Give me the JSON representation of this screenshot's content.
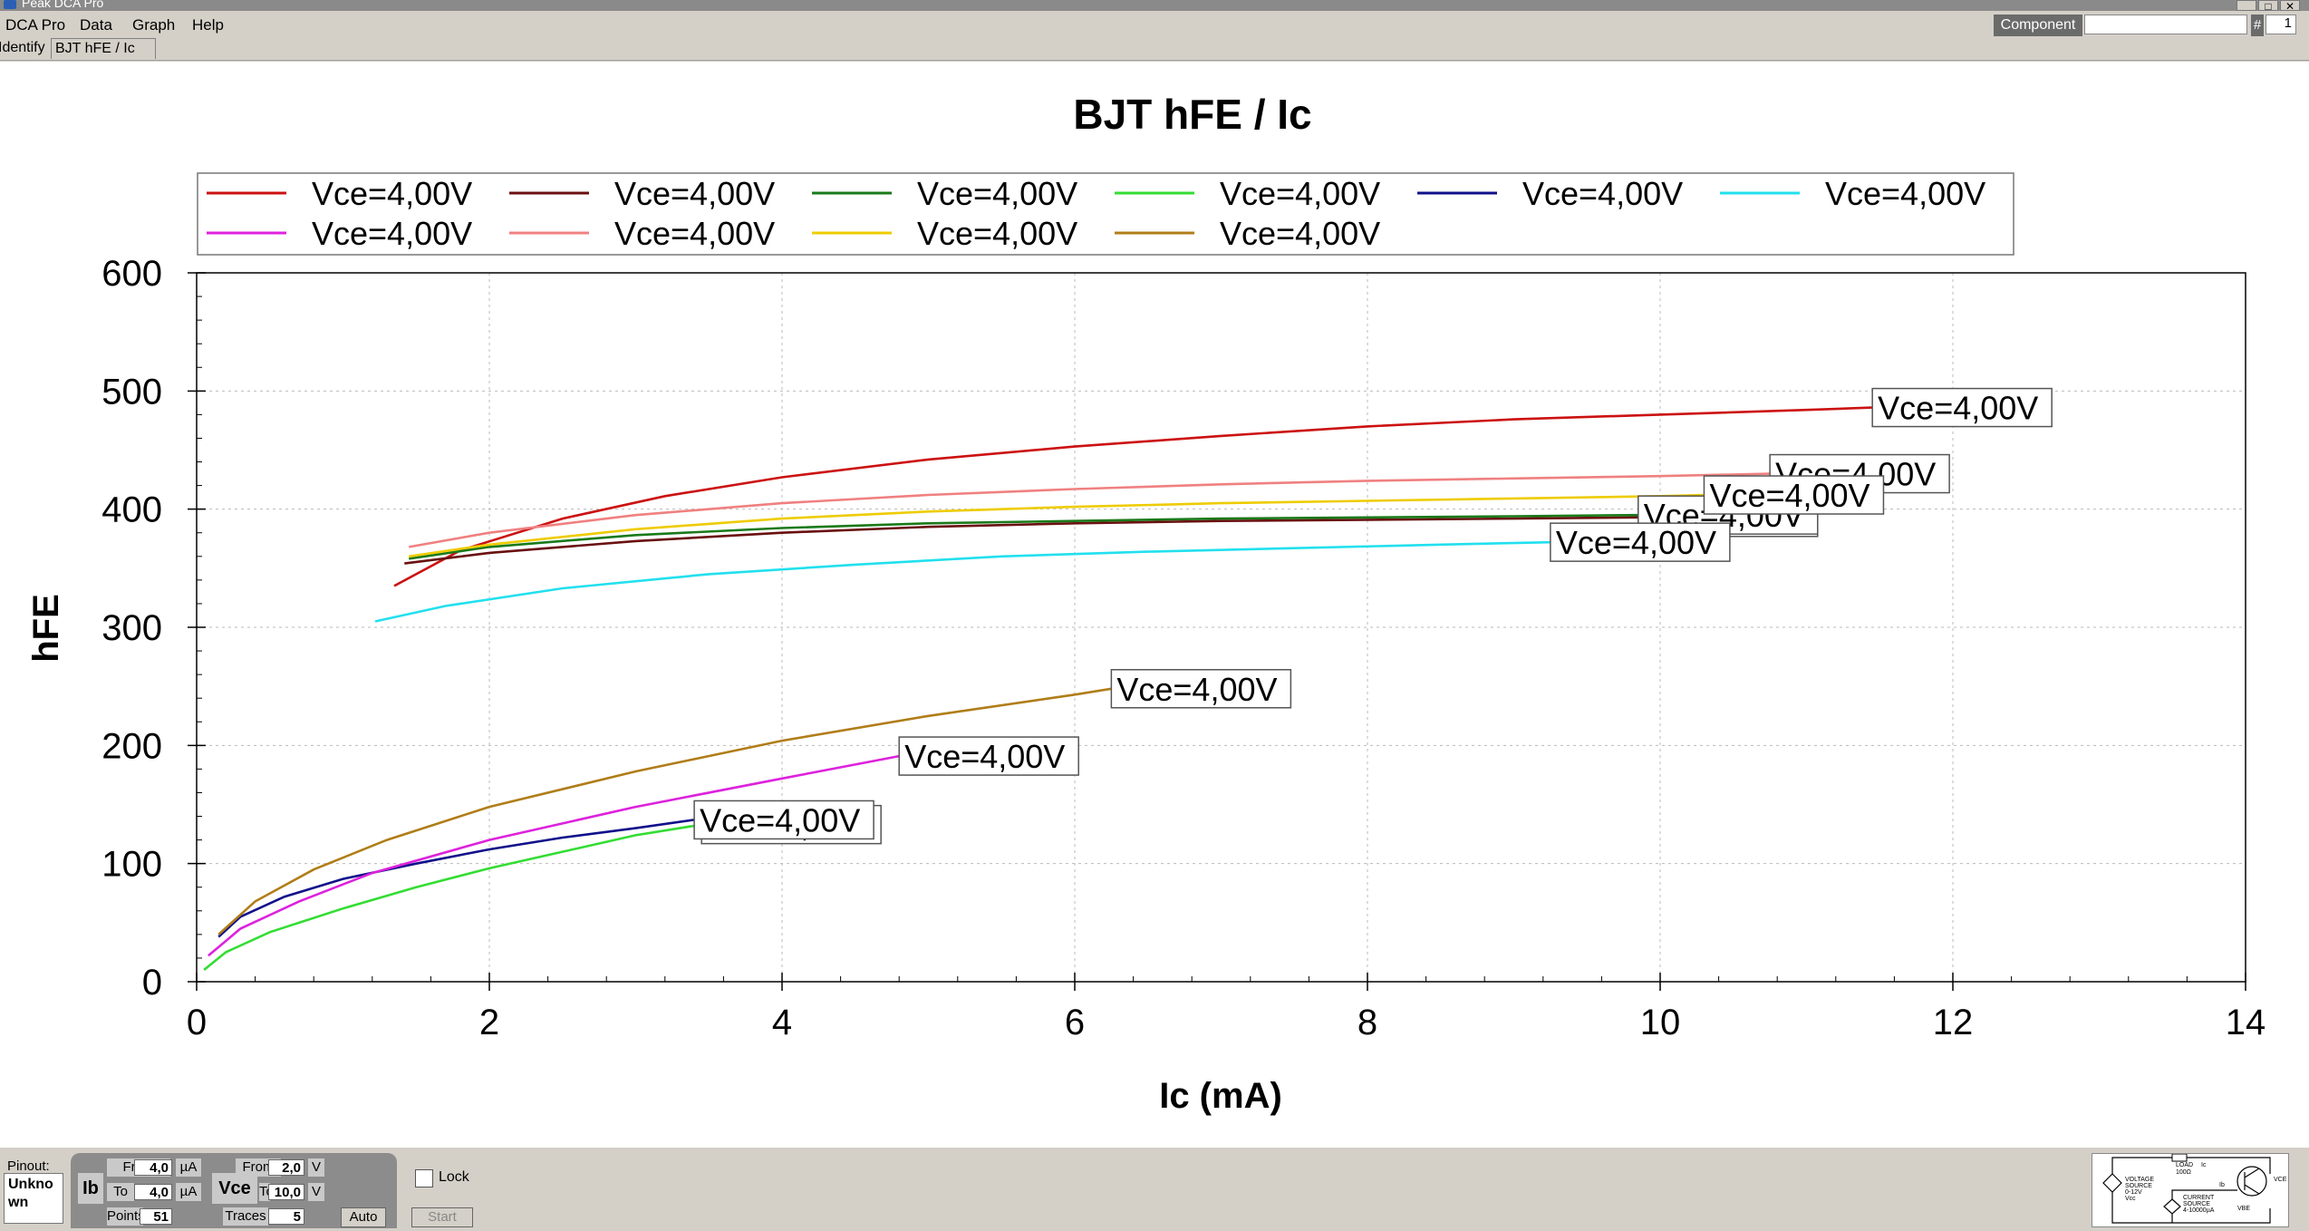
{
  "window": {
    "title": "Peak DCA Pro"
  },
  "menu": {
    "items": [
      "DCA Pro",
      "Data",
      "Graph",
      "Help"
    ]
  },
  "component": {
    "label": "Component",
    "value": "",
    "hash": "#",
    "number": "1"
  },
  "tabs": [
    {
      "label": "Identify"
    },
    {
      "label": "BJT hFE / Ic"
    }
  ],
  "chart_data": {
    "type": "line",
    "title": "BJT hFE / Ic",
    "xlabel": "Ic (mA)",
    "ylabel": "hFE",
    "xlim": [
      0,
      14
    ],
    "ylim": [
      0,
      600
    ],
    "xticks": [
      0,
      2,
      4,
      6,
      8,
      10,
      12,
      14
    ],
    "yticks": [
      0,
      100,
      200,
      300,
      400,
      500,
      600
    ],
    "grid": true,
    "legend_position": "top",
    "series": [
      {
        "name": "Vce=4,00V",
        "color": "#cc1111",
        "label": "Vce=4,00V",
        "x": [
          1.35,
          1.8,
          2.5,
          3.2,
          4.0,
          5.0,
          6.0,
          7.0,
          8.0,
          9.0,
          10.0,
          11.0,
          11.45
        ],
        "y": [
          335,
          365,
          392,
          411,
          427,
          442,
          453,
          462,
          470,
          476,
          480,
          484,
          486
        ]
      },
      {
        "name": "Vce=4,00V",
        "color": "#6a1010",
        "label": "Vce=4,00V",
        "x": [
          1.42,
          2.0,
          3.0,
          4.0,
          5.0,
          6.0,
          7.0,
          8.0,
          9.0,
          9.85
        ],
        "y": [
          354,
          363,
          373,
          380,
          385,
          388,
          390,
          391,
          392,
          393
        ]
      },
      {
        "name": "Vce=4,00V",
        "color": "#1a7a1a",
        "label": "Vce=4,00V",
        "x": [
          1.45,
          2.0,
          3.0,
          4.0,
          5.0,
          6.0,
          7.0,
          8.0,
          9.0,
          9.85
        ],
        "y": [
          358,
          368,
          378,
          384,
          388,
          390,
          392,
          393,
          394,
          395
        ]
      },
      {
        "name": "Vce=4,00V",
        "color": "#33dd33",
        "label": "Vce=4,00V",
        "x": [
          0.05,
          0.2,
          0.5,
          1.0,
          1.5,
          2.0,
          2.5,
          3.0,
          3.45
        ],
        "y": [
          10,
          25,
          42,
          62,
          80,
          96,
          110,
          124,
          133
        ]
      },
      {
        "name": "Vce=4,00V",
        "color": "#10108a",
        "label": "Vce=4,00V",
        "x": [
          0.15,
          0.3,
          0.6,
          1.0,
          1.5,
          2.0,
          2.5,
          3.0,
          3.4
        ],
        "y": [
          38,
          55,
          72,
          87,
          100,
          112,
          122,
          130,
          137
        ]
      },
      {
        "name": "Vce=4,00V",
        "color": "#22e0ee",
        "label": "Vce=4,00V",
        "x": [
          1.22,
          1.7,
          2.5,
          3.5,
          4.5,
          5.5,
          6.5,
          7.5,
          8.5,
          9.25
        ],
        "y": [
          305,
          318,
          333,
          345,
          353,
          360,
          364,
          367,
          370,
          372
        ]
      },
      {
        "name": "Vce=4,00V",
        "color": "#dd22dd",
        "label": "Vce=4,00V",
        "x": [
          0.08,
          0.3,
          0.7,
          1.2,
          2.0,
          3.0,
          4.0,
          4.8
        ],
        "y": [
          22,
          45,
          68,
          92,
          120,
          148,
          172,
          191
        ]
      },
      {
        "name": "Vce=4,00V",
        "color": "#f08080",
        "label": "Vce=4,00V",
        "x": [
          1.45,
          2.0,
          3.0,
          4.0,
          5.0,
          6.0,
          7.0,
          8.0,
          9.0,
          10.0,
          10.75
        ],
        "y": [
          368,
          380,
          395,
          405,
          412,
          417,
          421,
          424,
          426,
          428,
          430
        ]
      },
      {
        "name": "Vce=4,00V",
        "color": "#eecc00",
        "label": "Vce=4,00V",
        "x": [
          1.45,
          2.0,
          3.0,
          4.0,
          5.0,
          6.0,
          7.0,
          8.0,
          9.0,
          10.0,
          10.3
        ],
        "y": [
          360,
          370,
          383,
          392,
          398,
          402,
          405,
          407,
          409,
          411,
          412
        ]
      },
      {
        "name": "Vce=4,00V",
        "color": "#b07d18",
        "label": "Vce=4,00V",
        "x": [
          0.15,
          0.4,
          0.8,
          1.3,
          2.0,
          3.0,
          4.0,
          5.0,
          6.0,
          6.25
        ],
        "y": [
          40,
          68,
          95,
          120,
          148,
          178,
          204,
          225,
          243,
          248
        ]
      }
    ]
  },
  "bottom": {
    "pinout_label": "Pinout:",
    "pinout_value": "Unknown",
    "ib_label": "Ib",
    "ib_from_label": "From",
    "ib_from_value": "4,0",
    "ib_unit": "µA",
    "ib_to_label": "To",
    "ib_to_value": "4,0",
    "points_label": "Points",
    "points_value": "51",
    "vce_label": "Vce",
    "vce_from_label": "From",
    "vce_from_value": "2,0",
    "vce_unit": "V",
    "vce_to_label": "To",
    "vce_to_value": "10,0",
    "traces_label": "Traces",
    "traces_value": "5",
    "lock_label": "Lock",
    "auto_button": "Auto",
    "start_button": "Start"
  },
  "circuit": {
    "labels": [
      "LOAD",
      "100Ω",
      "Ic",
      "VOLTAGE",
      "SOURCE",
      "0-12V",
      "Vcc",
      "CURRENT",
      "SOURCE",
      "4-10000µA",
      "Ib",
      "VBE",
      "VCE"
    ]
  }
}
